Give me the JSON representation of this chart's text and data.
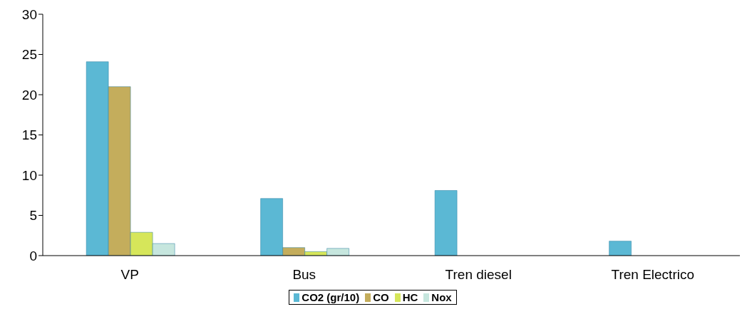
{
  "chart_data": {
    "type": "bar",
    "categories": [
      "VP",
      "Bus",
      "Tren diesel",
      "Tren Electrico"
    ],
    "series": [
      {
        "name": "CO2 (gr/10)",
        "color": "#5bb8d4",
        "values": [
          24.1,
          7.1,
          8.1,
          1.8
        ]
      },
      {
        "name": "CO",
        "color": "#c4ad5c",
        "values": [
          21,
          1,
          0,
          0
        ]
      },
      {
        "name": "HC",
        "color": "#d6e65a",
        "values": [
          2.9,
          0.5,
          0,
          0
        ]
      },
      {
        "name": "Nox",
        "color": "#c6e6de",
        "values": [
          1.5,
          0.9,
          0,
          0
        ]
      }
    ],
    "ylim": [
      0,
      30
    ],
    "yticks": [
      0,
      5,
      10,
      15,
      20,
      25,
      30
    ],
    "grid": false,
    "legend": "bottom"
  }
}
